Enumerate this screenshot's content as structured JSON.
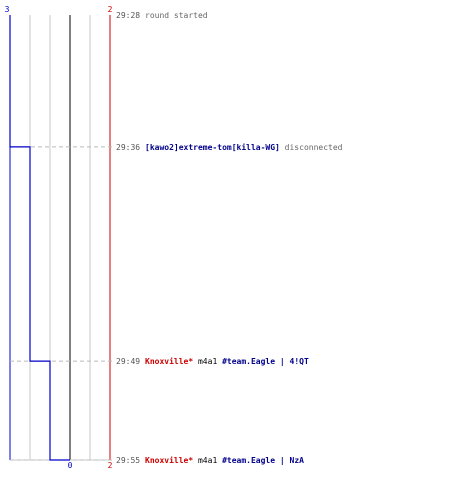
{
  "colors": {
    "blue_team": "#0000cc",
    "red_team": "#cc0000",
    "grid": "#c8c8c8",
    "zero_line": "#808080",
    "dashed": "#bbbbbb",
    "time_text": "#555555",
    "blue_name": "#00008b",
    "red_name": "#cc0000"
  },
  "chart_data": {
    "type": "line",
    "step": true,
    "orientation": "vertical",
    "x_axis": {
      "left_label": "3",
      "right_label": "2",
      "zero_label": "0",
      "left_value": -3,
      "right_value": 2,
      "zero_value": 0
    },
    "series": [
      {
        "color": "#0000cc",
        "points": [
          {
            "time": "29:28",
            "value": -3
          },
          {
            "time": "29:36",
            "value": -2
          },
          {
            "time": "29:49",
            "value": -1
          },
          {
            "time": "29:55",
            "value": 0
          }
        ]
      }
    ],
    "events": [
      {
        "time": "29:28",
        "parts": [
          {
            "text": "round started",
            "style": "desc"
          }
        ]
      },
      {
        "time": "29:36",
        "parts": [
          {
            "text": "[kawo2]extreme-tom[killa-WG]",
            "style": "blue"
          },
          {
            "text": " disconnected",
            "style": "desc"
          }
        ]
      },
      {
        "time": "29:49",
        "parts": [
          {
            "text": "Knoxville*",
            "style": "red"
          },
          {
            "text": " m4a1 ",
            "style": "plain"
          },
          {
            "text": "#team.Eagle | 4!QT",
            "style": "blue"
          }
        ]
      },
      {
        "time": "29:55",
        "parts": [
          {
            "text": "Knoxville*",
            "style": "red"
          },
          {
            "text": " m4a1 ",
            "style": "plain"
          },
          {
            "text": "#team.Eagle | NzA",
            "style": "blue"
          }
        ]
      }
    ]
  }
}
